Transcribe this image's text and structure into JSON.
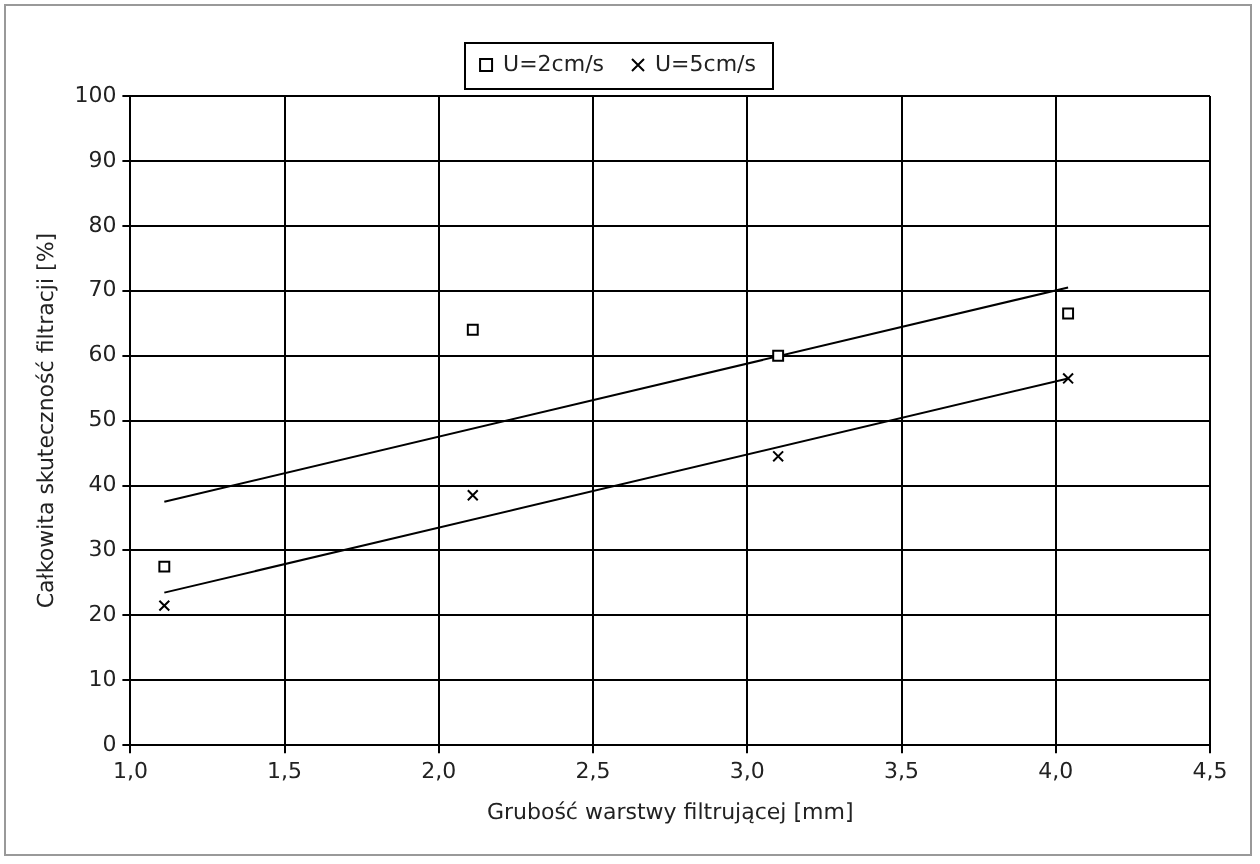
{
  "chart_data": {
    "type": "scatter",
    "xlabel": "Grubość warstwy filtrującej [mm]",
    "ylabel": "Całkowita skuteczność filtracji [%]",
    "xlim": [
      1.0,
      4.5
    ],
    "xticks": [
      {
        "value": 1.0,
        "label": "1,0"
      },
      {
        "value": 1.5,
        "label": "1,5"
      },
      {
        "value": 2.0,
        "label": "2,0"
      },
      {
        "value": 2.5,
        "label": "2,5"
      },
      {
        "value": 3.0,
        "label": "3,0"
      },
      {
        "value": 3.5,
        "label": "3,5"
      },
      {
        "value": 4.0,
        "label": "4,0"
      },
      {
        "value": 4.5,
        "label": "4,5"
      }
    ],
    "ylim": [
      0,
      100
    ],
    "yticks": [
      0,
      10,
      20,
      30,
      40,
      50,
      60,
      70,
      80,
      90,
      100
    ],
    "grid": true,
    "legend": "top",
    "series": [
      {
        "name": "U=2cm/s",
        "type": "scatter",
        "color": "#000000",
        "marker": "square",
        "x": [
          1.11,
          2.11,
          3.1,
          4.04
        ],
        "values": [
          27.5,
          64,
          60,
          66.5
        ]
      },
      {
        "name": "U=5cm/s",
        "type": "scatter",
        "color": "#000000",
        "marker": "cross",
        "x": [
          1.11,
          2.11,
          3.1,
          4.04
        ],
        "values": [
          21.5,
          38.5,
          44.5,
          56.5
        ]
      },
      {
        "type": "line",
        "color": "#000000",
        "marker": "none",
        "line_style": "solid",
        "x": [
          1.11,
          4.04
        ],
        "values": [
          37.5,
          70.5
        ]
      },
      {
        "type": "line",
        "color": "#000000",
        "marker": "none",
        "line_style": "solid",
        "x": [
          1.11,
          4.04
        ],
        "values": [
          23.5,
          56.5
        ]
      }
    ]
  }
}
